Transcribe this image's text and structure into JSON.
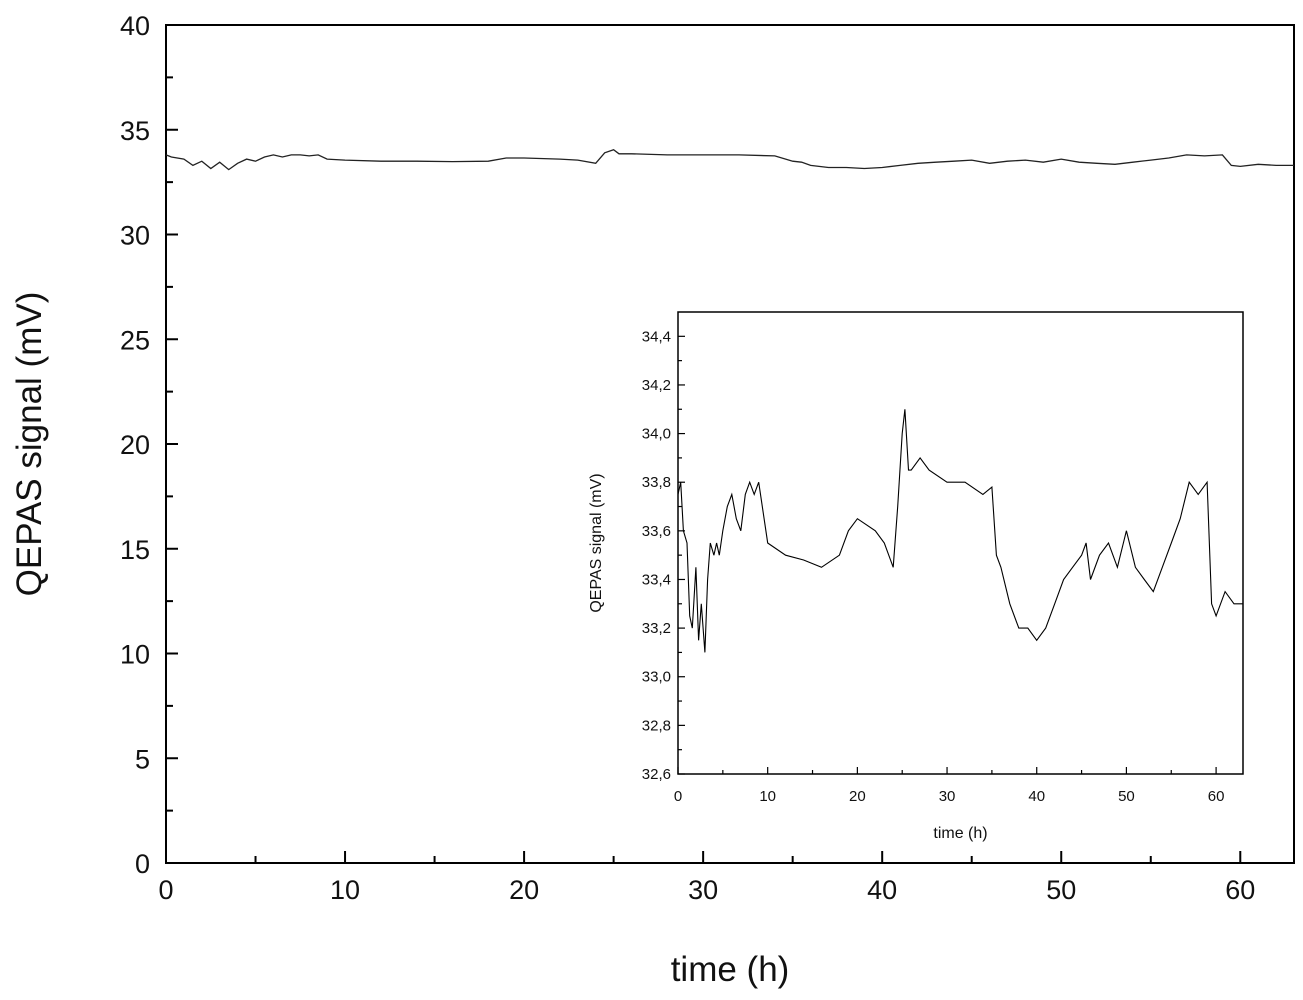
{
  "chart_data": [
    {
      "type": "line",
      "title": "",
      "xlabel": "time (h)",
      "ylabel": "QEPAS signal (mV)",
      "xlim": [
        0,
        63
      ],
      "ylim": [
        0,
        40
      ],
      "xticks": [
        "0",
        "10",
        "20",
        "30",
        "40",
        "50",
        "60"
      ],
      "yticks": [
        "0",
        "5",
        "10",
        "15",
        "20",
        "25",
        "30",
        "35",
        "40"
      ],
      "grid": false,
      "series": [
        {
          "x": [
            0,
            0.3,
            1,
            1.5,
            2,
            2.5,
            3,
            3.5,
            4,
            4.5,
            5,
            5.5,
            6,
            6.5,
            7,
            7.5,
            8,
            8.5,
            9,
            10,
            12,
            14,
            16,
            18,
            19,
            20,
            22,
            23,
            24,
            24.5,
            25,
            25.3,
            26,
            28,
            30,
            32,
            34,
            35,
            35.5,
            36,
            37,
            38,
            39,
            40,
            41,
            42,
            43,
            44,
            45,
            46,
            47,
            48,
            49,
            50,
            51,
            52,
            53,
            54,
            55,
            56,
            57,
            58,
            59,
            59.5,
            60,
            61,
            62,
            63
          ],
          "y": [
            33.8,
            33.7,
            33.6,
            33.3,
            33.5,
            33.15,
            33.45,
            33.1,
            33.4,
            33.6,
            33.5,
            33.7,
            33.8,
            33.7,
            33.8,
            33.8,
            33.75,
            33.8,
            33.6,
            33.55,
            33.5,
            33.5,
            33.48,
            33.5,
            33.65,
            33.65,
            33.6,
            33.55,
            33.4,
            33.9,
            34.05,
            33.85,
            33.85,
            33.8,
            33.8,
            33.8,
            33.75,
            33.5,
            33.45,
            33.3,
            33.2,
            33.2,
            33.15,
            33.2,
            33.3,
            33.4,
            33.45,
            33.5,
            33.55,
            33.4,
            33.5,
            33.55,
            33.45,
            33.6,
            33.45,
            33.4,
            33.35,
            33.45,
            33.55,
            33.65,
            33.8,
            33.75,
            33.8,
            33.3,
            33.25,
            33.35,
            33.3,
            33.3
          ]
        }
      ]
    },
    {
      "type": "line",
      "title": "",
      "xlabel": "time (h)",
      "ylabel": "QEPAS signal (mV)",
      "xlim": [
        0,
        63
      ],
      "ylim": [
        32.6,
        34.5
      ],
      "xticks": [
        "0",
        "10",
        "20",
        "30",
        "40",
        "50",
        "60"
      ],
      "yticks": [
        "32,6",
        "32,8",
        "33,0",
        "33,2",
        "33,4",
        "33,6",
        "33,8",
        "34,0",
        "34,2",
        "34,4"
      ],
      "grid": false,
      "series": [
        {
          "x": [
            0,
            0.3,
            0.6,
            1,
            1.3,
            1.6,
            2,
            2.3,
            2.6,
            3,
            3.3,
            3.6,
            4,
            4.3,
            4.6,
            5,
            5.5,
            6,
            6.5,
            7,
            7.5,
            8,
            8.5,
            9,
            10,
            12,
            14,
            16,
            18,
            19,
            20,
            22,
            23,
            24,
            24.5,
            25,
            25.3,
            25.7,
            26,
            27,
            28,
            30,
            32,
            34,
            35,
            35.5,
            36,
            37,
            38,
            39,
            40,
            41,
            42,
            43,
            44,
            45,
            45.5,
            46,
            47,
            48,
            49,
            50,
            51,
            52,
            53,
            54,
            55,
            56,
            57,
            58,
            59,
            59.5,
            60,
            61,
            62,
            63
          ],
          "y": [
            33.75,
            33.8,
            33.6,
            33.55,
            33.25,
            33.2,
            33.45,
            33.15,
            33.3,
            33.1,
            33.4,
            33.55,
            33.5,
            33.55,
            33.5,
            33.6,
            33.7,
            33.75,
            33.65,
            33.6,
            33.75,
            33.8,
            33.75,
            33.8,
            33.55,
            33.5,
            33.48,
            33.45,
            33.5,
            33.6,
            33.65,
            33.6,
            33.55,
            33.45,
            33.7,
            34.0,
            34.1,
            33.85,
            33.85,
            33.9,
            33.85,
            33.8,
            33.8,
            33.75,
            33.78,
            33.5,
            33.45,
            33.3,
            33.2,
            33.2,
            33.15,
            33.2,
            33.3,
            33.4,
            33.45,
            33.5,
            33.55,
            33.4,
            33.5,
            33.55,
            33.45,
            33.6,
            33.45,
            33.4,
            33.35,
            33.45,
            33.55,
            33.65,
            33.8,
            33.75,
            33.8,
            33.3,
            33.25,
            33.35,
            33.3,
            33.3
          ]
        }
      ]
    }
  ]
}
